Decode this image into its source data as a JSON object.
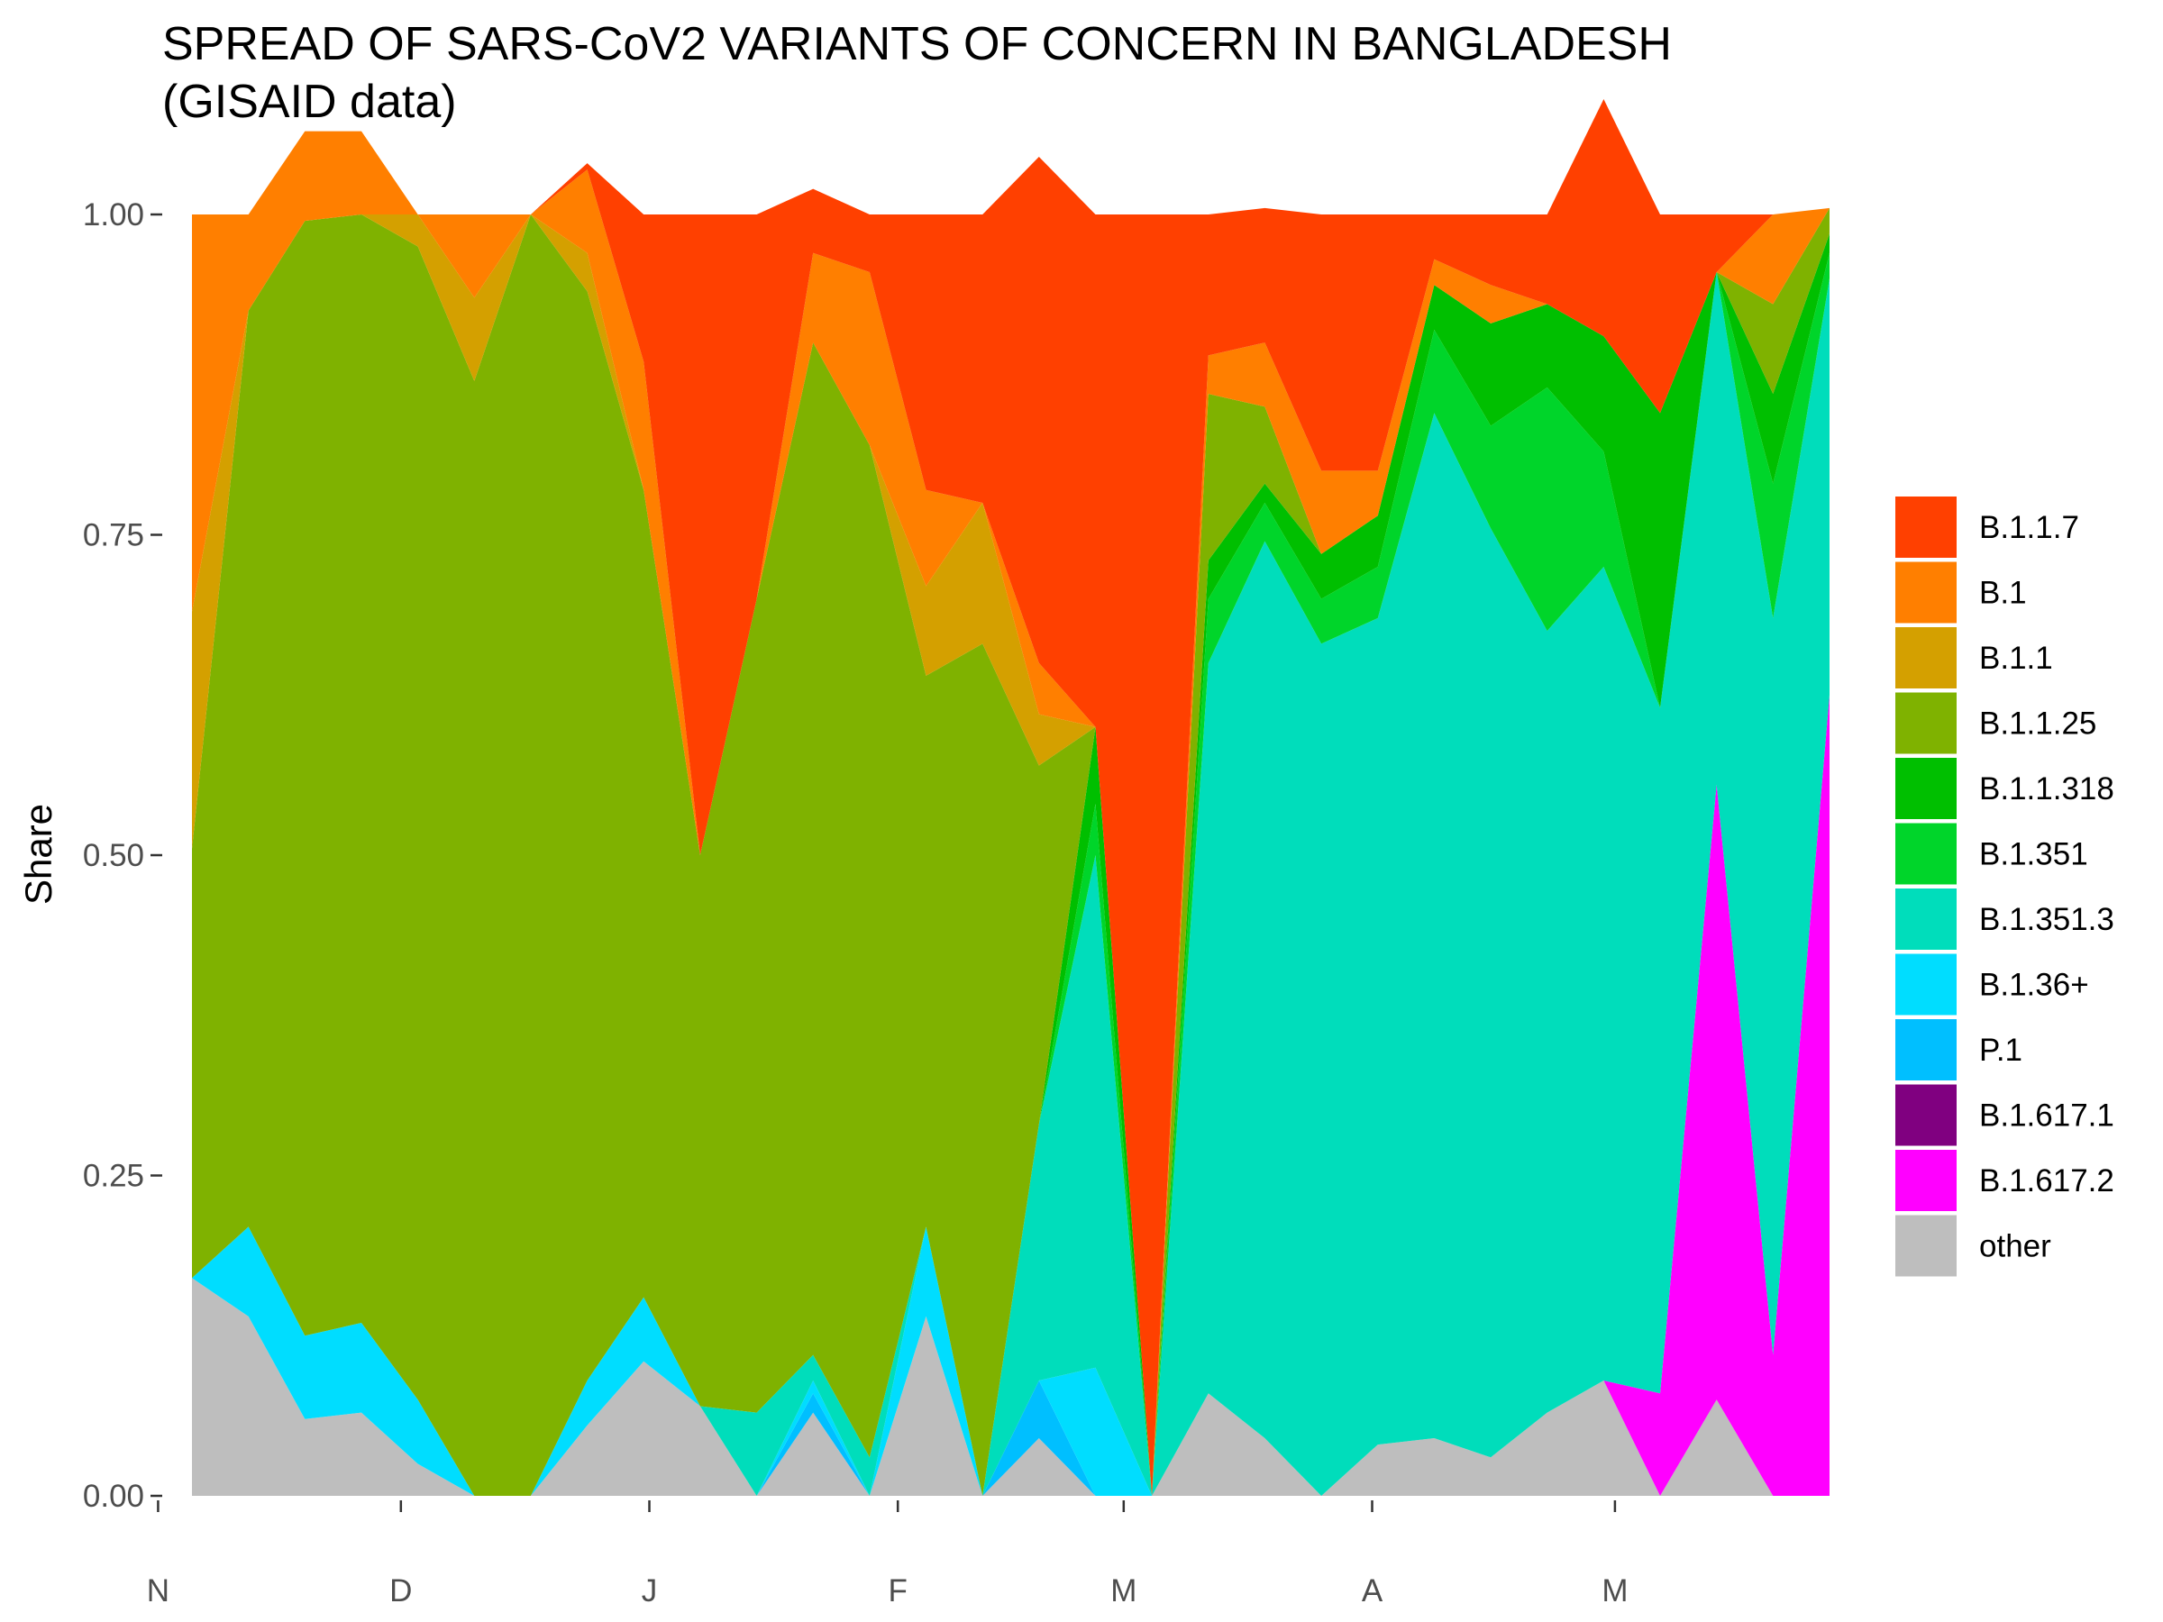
{
  "chart_data": {
    "type": "area",
    "title": "SPREAD OF SARS-CoV2 VARIANTS OF CONCERN IN BANGLADESH",
    "subtitle": "(GISAID data)",
    "xlabel": "",
    "ylabel": "Share",
    "ylim": [
      0,
      1
    ],
    "yticks": [
      "0.00",
      "0.25",
      "0.50",
      "0.75",
      "1.00"
    ],
    "xticks": [
      {
        "label": "N",
        "x": 0
      },
      {
        "label": "D",
        "x": 4.3
      },
      {
        "label": "J",
        "x": 8.7
      },
      {
        "label": "F",
        "x": 13.1
      },
      {
        "label": "M",
        "x": 17.1
      },
      {
        "label": "A",
        "x": 21.5
      },
      {
        "label": "M",
        "x": 25.8
      }
    ],
    "x": [
      0.6,
      1.6,
      2.6,
      3.6,
      4.6,
      5.6,
      6.6,
      7.6,
      8.6,
      9.6,
      10.6,
      11.6,
      12.6,
      13.6,
      14.6,
      15.6,
      16.6,
      17.6,
      18.6,
      19.6,
      20.6,
      21.6,
      22.6,
      23.6,
      24.6,
      25.6,
      26.6,
      27.6,
      28.6,
      29.6
    ],
    "grid": false,
    "legend_position": "right",
    "series": [
      {
        "name": "other",
        "color": "#bebebe",
        "values": [
          0.17,
          0.14,
          0.06,
          0.065,
          0.025,
          0,
          0,
          0.055,
          0.105,
          0.07,
          0,
          0.065,
          0,
          0.14,
          0,
          0.045,
          0,
          0,
          0.08,
          0.045,
          0,
          0.04,
          0.045,
          0.03,
          0.065,
          0.09,
          0,
          0.075,
          0,
          0
        ]
      },
      {
        "name": "B.1.617.2",
        "color": "#ff00ff",
        "values": [
          0,
          0,
          0,
          0,
          0,
          0,
          0,
          0,
          0,
          0,
          0,
          0,
          0,
          0,
          0,
          0,
          0,
          0,
          0,
          0,
          0,
          0,
          0,
          0,
          0,
          0,
          0.08,
          0.48,
          0.11,
          0.625
        ]
      },
      {
        "name": "B.1.617.1",
        "color": "#800080",
        "values": [
          0,
          0,
          0,
          0,
          0,
          0,
          0,
          0,
          0,
          0,
          0,
          0,
          0,
          0,
          0,
          0,
          0,
          0,
          0,
          0,
          0,
          0,
          0,
          0,
          0,
          0,
          0,
          0,
          0,
          0
        ]
      },
      {
        "name": "P.1",
        "color": "#00bfff",
        "values": [
          0,
          0,
          0,
          0,
          0,
          0,
          0,
          0,
          0,
          0,
          0,
          0.015,
          0,
          0,
          0,
          0.045,
          0,
          0,
          0,
          0,
          0,
          0,
          0,
          0,
          0,
          0,
          0,
          0,
          0,
          0
        ]
      },
      {
        "name": "B.1.36+",
        "color": "#00ddff",
        "values": [
          0,
          0.07,
          0.065,
          0.07,
          0.05,
          0,
          0,
          0.035,
          0.05,
          0,
          0,
          0.01,
          0,
          0.07,
          0,
          0,
          0.1,
          0,
          0,
          0,
          0,
          0,
          0,
          0,
          0,
          0,
          0,
          0,
          0,
          0
        ]
      },
      {
        "name": "B.1.351.3",
        "color": "#00ddbb",
        "values": [
          0,
          0,
          0,
          0,
          0,
          0,
          0,
          0,
          0,
          0,
          0.065,
          0.02,
          0.03,
          0,
          0,
          0.2,
          0.4,
          0,
          0.57,
          0.7,
          0.665,
          0.645,
          0.8,
          0.725,
          0.61,
          0.635,
          0.535,
          0.4,
          0.575,
          0.325
        ]
      },
      {
        "name": "B.1.351",
        "color": "#00d52a",
        "values": [
          0,
          0,
          0,
          0,
          0,
          0,
          0,
          0,
          0,
          0,
          0,
          0,
          0,
          0,
          0,
          0,
          0.04,
          0,
          0.05,
          0.03,
          0.035,
          0.04,
          0.065,
          0.08,
          0.19,
          0.09,
          0,
          0,
          0.105,
          0.02
        ]
      },
      {
        "name": "B.1.1.318",
        "color": "#00bf00",
        "values": [
          0,
          0,
          0,
          0,
          0,
          0,
          0,
          0,
          0,
          0,
          0,
          0,
          0,
          0,
          0,
          0,
          0.06,
          0,
          0.03,
          0.015,
          0.035,
          0.04,
          0.035,
          0.08,
          0.065,
          0.09,
          0.23,
          0,
          0.07,
          0.015
        ]
      },
      {
        "name": "B.1.1.25",
        "color": "#7fb200",
        "values": [
          0.335,
          0.715,
          0.87,
          0.865,
          0.9,
          0.87,
          1.0,
          0.85,
          0.63,
          0.43,
          0.635,
          0.79,
          0.79,
          0.43,
          0.665,
          0.28,
          0,
          0,
          0.13,
          0.06,
          0,
          0,
          0,
          0,
          0,
          0,
          0,
          0,
          0.07,
          0.02
        ]
      },
      {
        "name": "B.1.1",
        "color": "#d4a000",
        "values": [
          0.185,
          0,
          0,
          0,
          0.025,
          0.065,
          0,
          0.03,
          0,
          0,
          0,
          0,
          0,
          0.07,
          0.11,
          0.04,
          0,
          0,
          0,
          0,
          0,
          0,
          0,
          0,
          0,
          0,
          0,
          0,
          0,
          0
        ]
      },
      {
        "name": "B.1",
        "color": "#ff7f00",
        "values": [
          0.31,
          0.075,
          0.07,
          0.065,
          0,
          0.065,
          0,
          0.065,
          0.1,
          0,
          0,
          0.07,
          0.135,
          0.075,
          0,
          0.04,
          0,
          0,
          0.03,
          0.05,
          0.065,
          0.035,
          0.02,
          0.03,
          0,
          0,
          0,
          0,
          0.07,
          0
        ]
      },
      {
        "name": "B.1.1.7",
        "color": "#ff4000",
        "values": [
          0,
          0,
          0,
          0,
          0,
          0,
          0,
          0.005,
          0.115,
          0.5,
          0.3,
          0.05,
          0.045,
          0.215,
          0.225,
          0.395,
          0.4,
          1.0,
          0.11,
          0.105,
          0.2,
          0.2,
          0.035,
          0.055,
          0.07,
          0.185,
          0.155,
          0.045,
          0,
          0
        ]
      }
    ],
    "legend_order": [
      "B.1.1.7",
      "B.1",
      "B.1.1",
      "B.1.1.25",
      "B.1.1.318",
      "B.1.351",
      "B.1.351.3",
      "B.1.36+",
      "P.1",
      "B.1.617.1",
      "B.1.617.2",
      "other"
    ]
  }
}
